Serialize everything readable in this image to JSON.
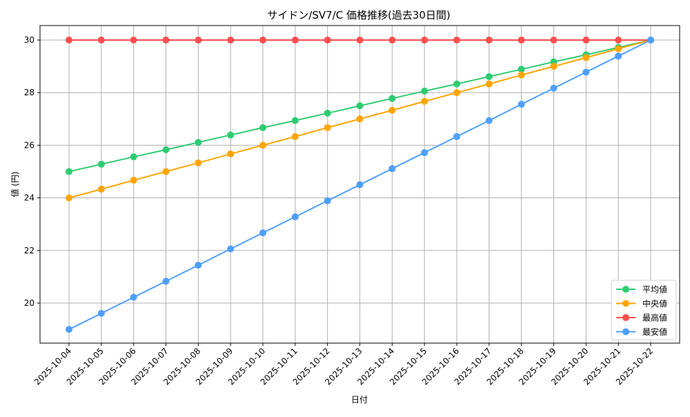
{
  "chart_data": {
    "type": "line",
    "title": "サイドン/SV7/C 価格推移(過去30日間)",
    "xlabel": "日付",
    "ylabel": "値 (円)",
    "x": [
      "2025-10-04",
      "2025-10-05",
      "2025-10-06",
      "2025-10-07",
      "2025-10-08",
      "2025-10-09",
      "2025-10-10",
      "2025-10-11",
      "2025-10-12",
      "2025-10-13",
      "2025-10-14",
      "2025-10-15",
      "2025-10-16",
      "2025-10-17",
      "2025-10-18",
      "2025-10-19",
      "2025-10-20",
      "2025-10-21",
      "2025-10-22"
    ],
    "yticks": [
      20,
      22,
      24,
      26,
      28,
      30
    ],
    "ylim": [
      18.45,
      30.55
    ],
    "grid": true,
    "legend_position": "lower right",
    "series": [
      {
        "name": "平均値",
        "color": "#2ecc71",
        "values": [
          25.0,
          25.28,
          25.56,
          25.83,
          26.11,
          26.39,
          26.67,
          26.94,
          27.22,
          27.5,
          27.78,
          28.06,
          28.33,
          28.61,
          28.89,
          29.17,
          29.44,
          29.72,
          30.0
        ]
      },
      {
        "name": "中央値",
        "color": "#ffa500",
        "values": [
          24.0,
          24.33,
          24.67,
          25.0,
          25.33,
          25.67,
          26.0,
          26.33,
          26.67,
          27.0,
          27.33,
          27.67,
          28.0,
          28.33,
          28.67,
          29.0,
          29.33,
          29.67,
          30.0
        ]
      },
      {
        "name": "最高値",
        "color": "#ff4d4d",
        "values": [
          30,
          30,
          30,
          30,
          30,
          30,
          30,
          30,
          30,
          30,
          30,
          30,
          30,
          30,
          30,
          30,
          30,
          30,
          30
        ]
      },
      {
        "name": "最安値",
        "color": "#4d9fff",
        "values": [
          19.0,
          19.61,
          20.22,
          20.83,
          21.44,
          22.06,
          22.67,
          23.28,
          23.89,
          24.5,
          25.11,
          25.72,
          26.33,
          26.94,
          27.56,
          28.17,
          28.78,
          29.39,
          30.0
        ]
      }
    ]
  }
}
